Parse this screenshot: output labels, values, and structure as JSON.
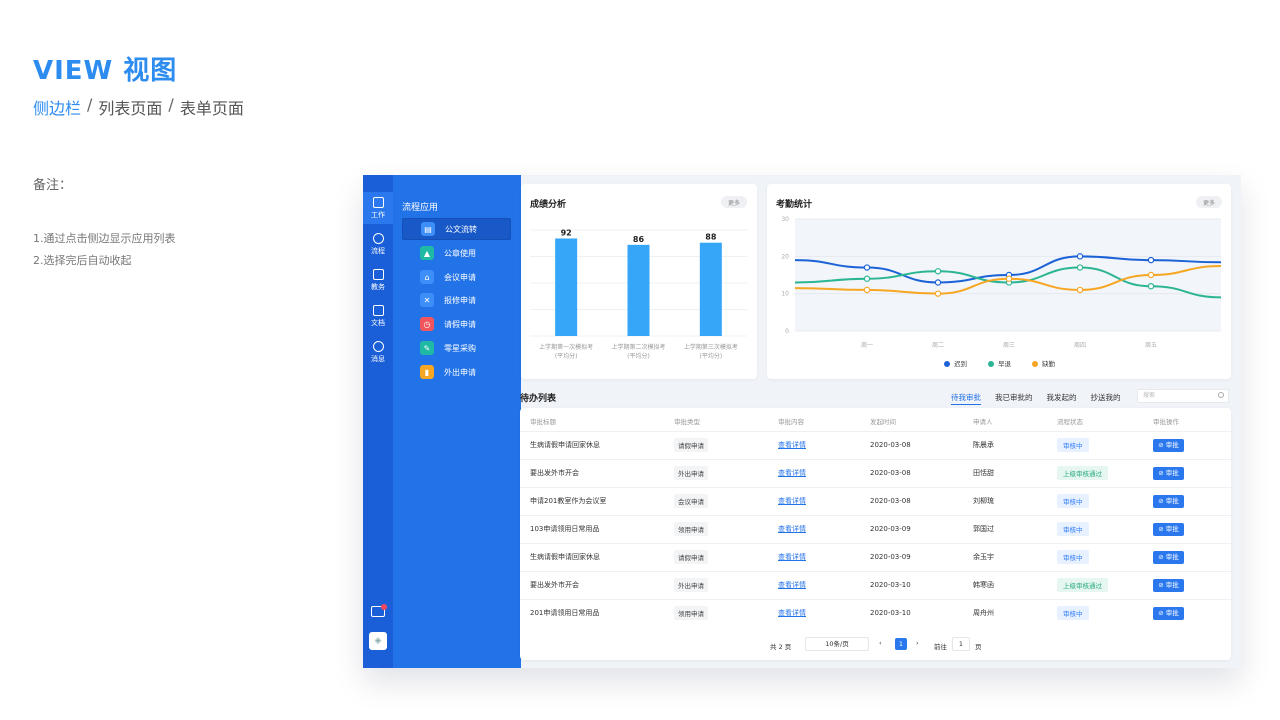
{
  "header": {
    "title": "VIEW 视图",
    "breadcrumb": [
      {
        "label": "侧边栏",
        "active": true
      },
      {
        "label": "列表页面",
        "active": false
      },
      {
        "label": "表单页面",
        "active": false
      }
    ],
    "separator": "/"
  },
  "notes": {
    "title": "备注：",
    "items": [
      "1.通过点击侧边显示应用列表",
      "2.选择完后自动收起"
    ]
  },
  "rail": {
    "items": [
      {
        "label": "工作",
        "icon": "briefcase-icon"
      },
      {
        "label": "流程",
        "icon": "flow-icon"
      },
      {
        "label": "教务",
        "icon": "book-icon"
      },
      {
        "label": "文档",
        "icon": "document-icon"
      },
      {
        "label": "消息",
        "icon": "bell-icon"
      }
    ]
  },
  "sidebar": {
    "title": "流程应用",
    "items": [
      {
        "label": "公文流转",
        "icon": "document-flow-icon",
        "color": "#3d8ef8"
      },
      {
        "label": "公章使用",
        "icon": "seal-icon",
        "color": "#1fb9a6"
      },
      {
        "label": "会议申请",
        "icon": "meeting-icon",
        "color": "#3d8ef8"
      },
      {
        "label": "报修申请",
        "icon": "repair-icon",
        "color": "#3d8ef8"
      },
      {
        "label": "请假申请",
        "icon": "clock-icon",
        "color": "#f0555d"
      },
      {
        "label": "零星采购",
        "icon": "purchase-icon",
        "color": "#1fb9a6"
      },
      {
        "label": "外出申请",
        "icon": "outing-icon",
        "color": "#f6a623"
      }
    ]
  },
  "score_card": {
    "title": "成绩分析",
    "more": "更多"
  },
  "attendance_card": {
    "title": "考勤统计",
    "more": "更多"
  },
  "chart_data": [
    {
      "type": "bar",
      "title": "成绩分析",
      "categories": [
        "上学期第一次模拟考\n(平均分)",
        "上学期第二次模拟考\n(平均分)",
        "上学期第三次模拟考\n(平均分)"
      ],
      "values": [
        92,
        86,
        88
      ],
      "ylim": [
        0,
        100
      ],
      "grid": true,
      "color": "#36a6f8"
    },
    {
      "type": "line",
      "title": "考勤统计",
      "x": [
        "周一",
        "周二",
        "周三",
        "周四",
        "周五"
      ],
      "ylim": [
        0,
        30
      ],
      "yticks": [
        0,
        10,
        20,
        30
      ],
      "grid": true,
      "legend": "bottom",
      "series": [
        {
          "name": "迟到",
          "color": "#1a62d6",
          "values": [
            17,
            13,
            15,
            20,
            19
          ]
        },
        {
          "name": "早退",
          "color": "#2bb592",
          "values": [
            14,
            16,
            13,
            17,
            12
          ]
        },
        {
          "name": "缺勤",
          "color": "#f6a623",
          "values": [
            11,
            10,
            14,
            11,
            15
          ]
        }
      ]
    }
  ],
  "todo": {
    "title": "待办列表",
    "tabs": [
      "待我审批",
      "我已审批的",
      "我发起的",
      "抄送我的"
    ],
    "search_placeholder": "搜索",
    "columns": [
      "审批标题",
      "审批类型",
      "审批内容",
      "发起时间",
      "申请人",
      "流程状态",
      "审批操作"
    ],
    "rows": [
      {
        "title": "生病请假申请回家休息",
        "type": "请假申请",
        "content": "查看详情",
        "date": "2020-03-08",
        "applicant": "陈晨承",
        "status": "审核中",
        "status_kind": "pend",
        "action": "审批"
      },
      {
        "title": "要出发外市开会",
        "type": "外出申请",
        "content": "查看详情",
        "date": "2020-03-08",
        "applicant": "田恬甜",
        "status": "上级审核通过",
        "status_kind": "pass",
        "action": "审批"
      },
      {
        "title": "申请201教室作为会议室",
        "type": "会议申请",
        "content": "查看详情",
        "date": "2020-03-08",
        "applicant": "刘柳琉",
        "status": "审核中",
        "status_kind": "pend",
        "action": "审批"
      },
      {
        "title": "103申请领用日常用品",
        "type": "领用申请",
        "content": "查看详情",
        "date": "2020-03-09",
        "applicant": "郭国过",
        "status": "审核中",
        "status_kind": "pend",
        "action": "审批"
      },
      {
        "title": "生病请假申请回家休息",
        "type": "请假申请",
        "content": "查看详情",
        "date": "2020-03-09",
        "applicant": "余玉宇",
        "status": "审核中",
        "status_kind": "pend",
        "action": "审批"
      },
      {
        "title": "要出发外市开会",
        "type": "外出申请",
        "content": "查看详情",
        "date": "2020-03-10",
        "applicant": "韩寒函",
        "status": "上级审核通过",
        "status_kind": "pass",
        "action": "审批"
      },
      {
        "title": "201申请领用日常用品",
        "type": "领用申请",
        "content": "查看详情",
        "date": "2020-03-10",
        "applicant": "周舟州",
        "status": "审核中",
        "status_kind": "pend",
        "action": "审批"
      }
    ]
  },
  "pager": {
    "total": "共 2 页",
    "page_size": "10条/页",
    "current": "1",
    "goto_label": "前往",
    "goto_value": "1",
    "page_label": "页"
  }
}
